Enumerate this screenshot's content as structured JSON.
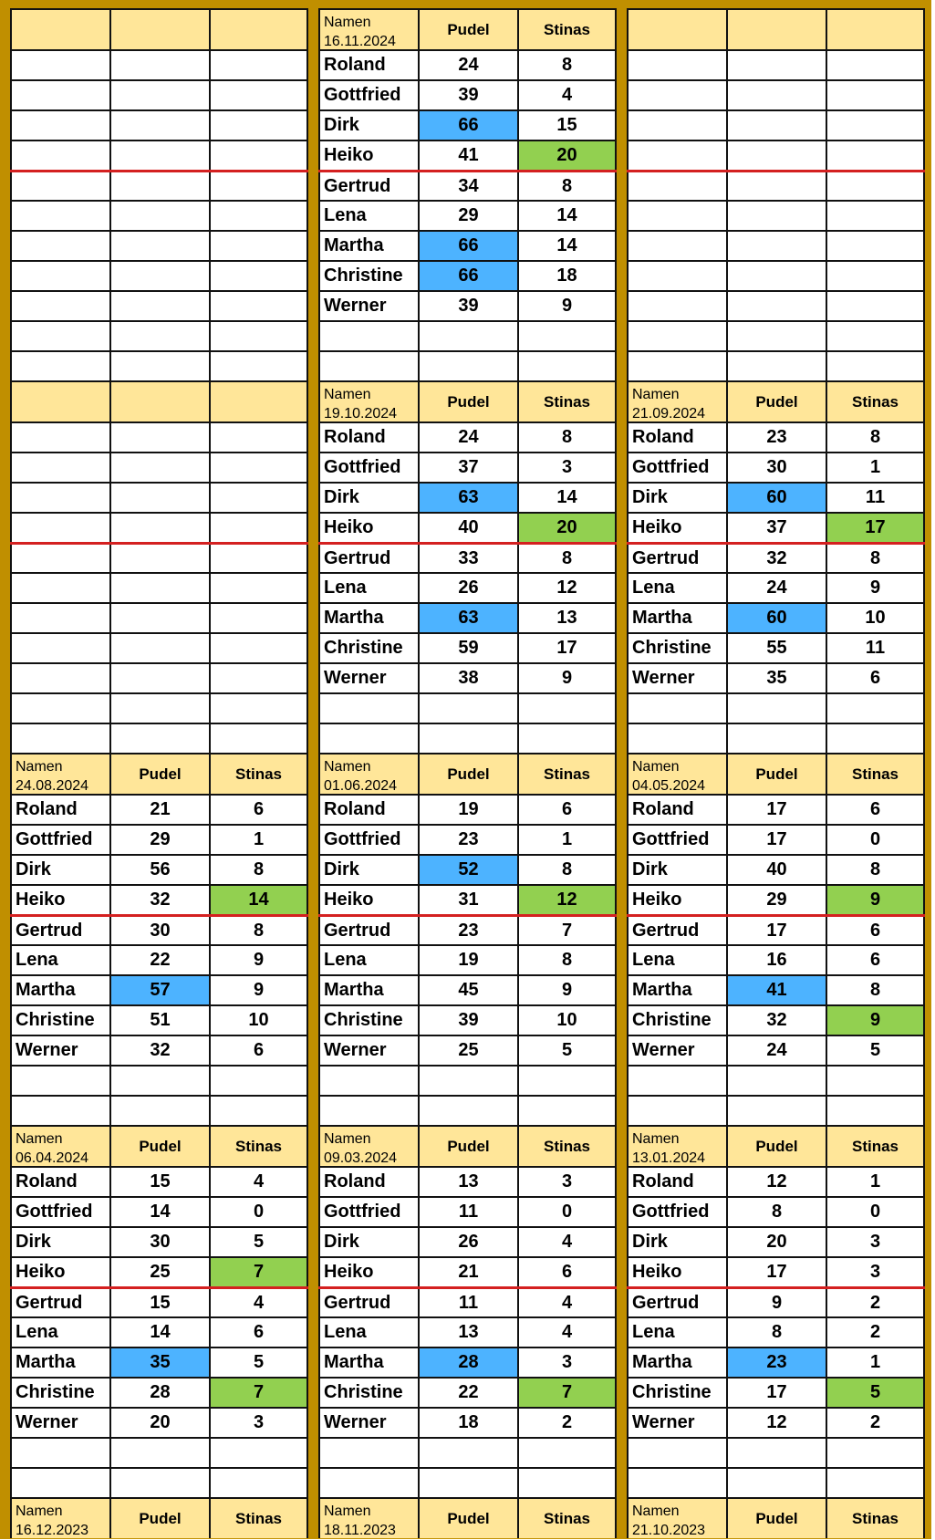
{
  "colors": {
    "frame": "#c08f00",
    "header": "#ffe699",
    "blue": "#4db3ff",
    "green": "#92d050",
    "separator": "#d42020"
  },
  "labels": {
    "name": "Namen",
    "pudel": "Pudel",
    "stinas": "Stinas"
  },
  "blocks": [
    {
      "panels": [
        {
          "empty": true
        },
        {
          "date": "16.11.2024",
          "rows": [
            {
              "name": "Roland",
              "pudel": "24",
              "stinas": "8"
            },
            {
              "name": "Gottfried",
              "pudel": "39",
              "stinas": "4"
            },
            {
              "name": "Dirk",
              "pudel": "66",
              "stinas": "15",
              "hp": "blue"
            },
            {
              "name": "Heiko",
              "pudel": "41",
              "stinas": "20",
              "hs": "green"
            },
            {
              "name": "Gertrud",
              "pudel": "34",
              "stinas": "8"
            },
            {
              "name": "Lena",
              "pudel": "29",
              "stinas": "14"
            },
            {
              "name": "Martha",
              "pudel": "66",
              "stinas": "14",
              "hp": "blue"
            },
            {
              "name": "Christine",
              "pudel": "66",
              "stinas": "18",
              "hp": "blue"
            },
            {
              "name": "Werner",
              "pudel": "39",
              "stinas": "9"
            }
          ]
        },
        {
          "empty": true
        }
      ]
    },
    {
      "panels": [
        {
          "empty": true
        },
        {
          "date": "19.10.2024",
          "rows": [
            {
              "name": "Roland",
              "pudel": "24",
              "stinas": "8"
            },
            {
              "name": "Gottfried",
              "pudel": "37",
              "stinas": "3"
            },
            {
              "name": "Dirk",
              "pudel": "63",
              "stinas": "14",
              "hp": "blue"
            },
            {
              "name": "Heiko",
              "pudel": "40",
              "stinas": "20",
              "hs": "green"
            },
            {
              "name": "Gertrud",
              "pudel": "33",
              "stinas": "8"
            },
            {
              "name": "Lena",
              "pudel": "26",
              "stinas": "12"
            },
            {
              "name": "Martha",
              "pudel": "63",
              "stinas": "13",
              "hp": "blue"
            },
            {
              "name": "Christine",
              "pudel": "59",
              "stinas": "17"
            },
            {
              "name": "Werner",
              "pudel": "38",
              "stinas": "9"
            }
          ]
        },
        {
          "date": "21.09.2024",
          "rows": [
            {
              "name": "Roland",
              "pudel": "23",
              "stinas": "8"
            },
            {
              "name": "Gottfried",
              "pudel": "30",
              "stinas": "1"
            },
            {
              "name": "Dirk",
              "pudel": "60",
              "stinas": "11",
              "hp": "blue"
            },
            {
              "name": "Heiko",
              "pudel": "37",
              "stinas": "17",
              "hs": "green"
            },
            {
              "name": "Gertrud",
              "pudel": "32",
              "stinas": "8"
            },
            {
              "name": "Lena",
              "pudel": "24",
              "stinas": "9"
            },
            {
              "name": "Martha",
              "pudel": "60",
              "stinas": "10",
              "hp": "blue"
            },
            {
              "name": "Christine",
              "pudel": "55",
              "stinas": "11"
            },
            {
              "name": "Werner",
              "pudel": "35",
              "stinas": "6"
            }
          ]
        }
      ]
    },
    {
      "panels": [
        {
          "date": "24.08.2024",
          "rows": [
            {
              "name": "Roland",
              "pudel": "21",
              "stinas": "6"
            },
            {
              "name": "Gottfried",
              "pudel": "29",
              "stinas": "1"
            },
            {
              "name": "Dirk",
              "pudel": "56",
              "stinas": "8"
            },
            {
              "name": "Heiko",
              "pudel": "32",
              "stinas": "14",
              "hs": "green"
            },
            {
              "name": "Gertrud",
              "pudel": "30",
              "stinas": "8"
            },
            {
              "name": "Lena",
              "pudel": "22",
              "stinas": "9"
            },
            {
              "name": "Martha",
              "pudel": "57",
              "stinas": "9",
              "hp": "blue"
            },
            {
              "name": "Christine",
              "pudel": "51",
              "stinas": "10"
            },
            {
              "name": "Werner",
              "pudel": "32",
              "stinas": "6"
            }
          ]
        },
        {
          "date": "01.06.2024",
          "rows": [
            {
              "name": "Roland",
              "pudel": "19",
              "stinas": "6"
            },
            {
              "name": "Gottfried",
              "pudel": "23",
              "stinas": "1"
            },
            {
              "name": "Dirk",
              "pudel": "52",
              "stinas": "8",
              "hp": "blue"
            },
            {
              "name": "Heiko",
              "pudel": "31",
              "stinas": "12",
              "hs": "green"
            },
            {
              "name": "Gertrud",
              "pudel": "23",
              "stinas": "7"
            },
            {
              "name": "Lena",
              "pudel": "19",
              "stinas": "8"
            },
            {
              "name": "Martha",
              "pudel": "45",
              "stinas": "9"
            },
            {
              "name": "Christine",
              "pudel": "39",
              "stinas": "10"
            },
            {
              "name": "Werner",
              "pudel": "25",
              "stinas": "5"
            }
          ]
        },
        {
          "date": "04.05.2024",
          "rows": [
            {
              "name": "Roland",
              "pudel": "17",
              "stinas": "6"
            },
            {
              "name": "Gottfried",
              "pudel": "17",
              "stinas": "0"
            },
            {
              "name": "Dirk",
              "pudel": "40",
              "stinas": "8"
            },
            {
              "name": "Heiko",
              "pudel": "29",
              "stinas": "9",
              "hs": "green"
            },
            {
              "name": "Gertrud",
              "pudel": "17",
              "stinas": "6"
            },
            {
              "name": "Lena",
              "pudel": "16",
              "stinas": "6"
            },
            {
              "name": "Martha",
              "pudel": "41",
              "stinas": "8",
              "hp": "blue"
            },
            {
              "name": "Christine",
              "pudel": "32",
              "stinas": "9",
              "hs": "green"
            },
            {
              "name": "Werner",
              "pudel": "24",
              "stinas": "5"
            }
          ]
        }
      ]
    },
    {
      "panels": [
        {
          "date": "06.04.2024",
          "rows": [
            {
              "name": "Roland",
              "pudel": "15",
              "stinas": "4"
            },
            {
              "name": "Gottfried",
              "pudel": "14",
              "stinas": "0"
            },
            {
              "name": "Dirk",
              "pudel": "30",
              "stinas": "5"
            },
            {
              "name": "Heiko",
              "pudel": "25",
              "stinas": "7",
              "hs": "green"
            },
            {
              "name": "Gertrud",
              "pudel": "15",
              "stinas": "4"
            },
            {
              "name": "Lena",
              "pudel": "14",
              "stinas": "6"
            },
            {
              "name": "Martha",
              "pudel": "35",
              "stinas": "5",
              "hp": "blue"
            },
            {
              "name": "Christine",
              "pudel": "28",
              "stinas": "7",
              "hs": "green"
            },
            {
              "name": "Werner",
              "pudel": "20",
              "stinas": "3"
            }
          ]
        },
        {
          "date": "09.03.2024",
          "rows": [
            {
              "name": "Roland",
              "pudel": "13",
              "stinas": "3"
            },
            {
              "name": "Gottfried",
              "pudel": "11",
              "stinas": "0"
            },
            {
              "name": "Dirk",
              "pudel": "26",
              "stinas": "4"
            },
            {
              "name": "Heiko",
              "pudel": "21",
              "stinas": "6"
            },
            {
              "name": "Gertrud",
              "pudel": "11",
              "stinas": "4"
            },
            {
              "name": "Lena",
              "pudel": "13",
              "stinas": "4"
            },
            {
              "name": "Martha",
              "pudel": "28",
              "stinas": "3",
              "hp": "blue"
            },
            {
              "name": "Christine",
              "pudel": "22",
              "stinas": "7",
              "hs": "green"
            },
            {
              "name": "Werner",
              "pudel": "18",
              "stinas": "2"
            }
          ]
        },
        {
          "date": "13.01.2024",
          "rows": [
            {
              "name": "Roland",
              "pudel": "12",
              "stinas": "1"
            },
            {
              "name": "Gottfried",
              "pudel": "8",
              "stinas": "0"
            },
            {
              "name": "Dirk",
              "pudel": "20",
              "stinas": "3"
            },
            {
              "name": "Heiko",
              "pudel": "17",
              "stinas": "3"
            },
            {
              "name": "Gertrud",
              "pudel": "9",
              "stinas": "2"
            },
            {
              "name": "Lena",
              "pudel": "8",
              "stinas": "2"
            },
            {
              "name": "Martha",
              "pudel": "23",
              "stinas": "1",
              "hp": "blue"
            },
            {
              "name": "Christine",
              "pudel": "17",
              "stinas": "5",
              "hs": "green"
            },
            {
              "name": "Werner",
              "pudel": "12",
              "stinas": "2"
            }
          ]
        }
      ]
    },
    {
      "panels": [
        {
          "date": "16.12.2023",
          "header_only": true
        },
        {
          "date": "18.11.2023",
          "header_only": true
        },
        {
          "date": "21.10.2023",
          "header_only": true
        }
      ]
    }
  ]
}
